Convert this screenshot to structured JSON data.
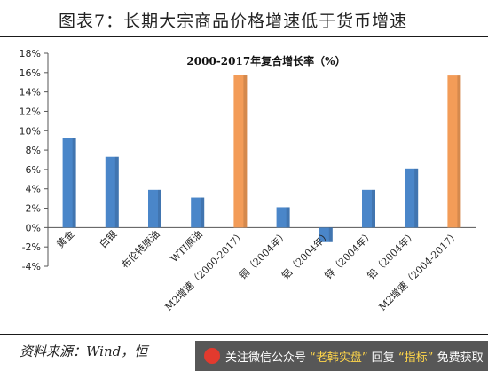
{
  "header": {
    "title": "图表7：长期大宗商品价格增速低于货币增速"
  },
  "source_text": "资料来源：Wind，恒",
  "watermark": {
    "logo_icon": "wechat-logo-icon",
    "text_parts": [
      "关注微信公众号",
      "“老韩实盘”",
      "回复",
      "“指标”",
      "免费获取"
    ]
  },
  "chart_data": {
    "type": "bar",
    "title": "2000-2017年复合增长率（%）",
    "xlabel": "",
    "ylabel": "",
    "ylim": [
      -4,
      18
    ],
    "ytick_step": 2,
    "ytick_suffix": "%",
    "grid": false,
    "categories": [
      "黄金",
      "白银",
      "布伦特原油",
      "WTI原油",
      "M2增速（2000-2017）",
      "铜（2004年）",
      "铝（2004年）",
      "锌（2004年）",
      "铅（2004年）",
      "M2增速（2004-2017）"
    ],
    "values": [
      9.2,
      7.3,
      3.9,
      3.1,
      15.8,
      2.1,
      -1.5,
      3.9,
      6.1,
      15.7
    ],
    "colors": [
      "#4a86c9",
      "#4a86c9",
      "#4a86c9",
      "#4a86c9",
      "#f39c58",
      "#4a86c9",
      "#4a86c9",
      "#4a86c9",
      "#4a86c9",
      "#f39c58"
    ]
  }
}
